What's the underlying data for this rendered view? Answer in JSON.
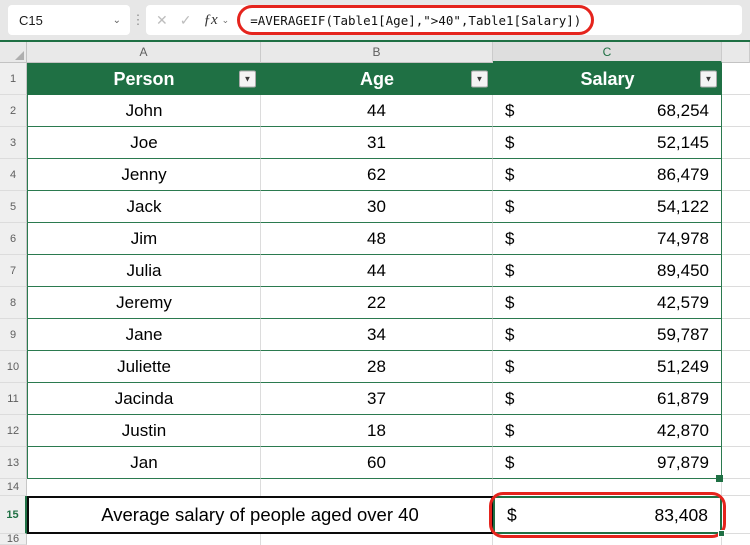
{
  "formula_bar": {
    "cell_reference": "C15",
    "formula": "=AVERAGEIF(Table1[Age],\">40\",Table1[Salary])"
  },
  "icons": {
    "chevron_down": "⌄",
    "kebab": "⋮",
    "cancel": "✕",
    "confirm": "✓",
    "function_fx": "ƒx",
    "filter": "▼"
  },
  "grid": {
    "column_letters": [
      "A",
      "B",
      "C"
    ],
    "row_numbers": [
      "1",
      "2",
      "3",
      "4",
      "5",
      "6",
      "7",
      "8",
      "9",
      "10",
      "11",
      "12",
      "13",
      "14",
      "15",
      "16"
    ],
    "selected_column": "C",
    "selected_row": "15"
  },
  "table": {
    "headers": [
      "Person",
      "Age",
      "Salary"
    ],
    "currency_symbol": "$",
    "rows": [
      {
        "person": "John",
        "age": "44",
        "salary": "68,254"
      },
      {
        "person": "Joe",
        "age": "31",
        "salary": "52,145"
      },
      {
        "person": "Jenny",
        "age": "62",
        "salary": "86,479"
      },
      {
        "person": "Jack",
        "age": "30",
        "salary": "54,122"
      },
      {
        "person": "Jim",
        "age": "48",
        "salary": "74,978"
      },
      {
        "person": "Julia",
        "age": "44",
        "salary": "89,450"
      },
      {
        "person": "Jeremy",
        "age": "22",
        "salary": "42,579"
      },
      {
        "person": "Jane",
        "age": "34",
        "salary": "59,787"
      },
      {
        "person": "Juliette",
        "age": "28",
        "salary": "51,249"
      },
      {
        "person": "Jacinda",
        "age": "37",
        "salary": "61,879"
      },
      {
        "person": "Justin",
        "age": "18",
        "salary": "42,870"
      },
      {
        "person": "Jan",
        "age": "60",
        "salary": "97,879"
      }
    ]
  },
  "summary": {
    "label": "Average salary of people aged over 40",
    "currency_symbol": "$",
    "value": "83,408"
  },
  "colors": {
    "excel_green": "#1F7044",
    "table_row_line": "#2B7A4F",
    "annotation_red": "#E5241D"
  }
}
